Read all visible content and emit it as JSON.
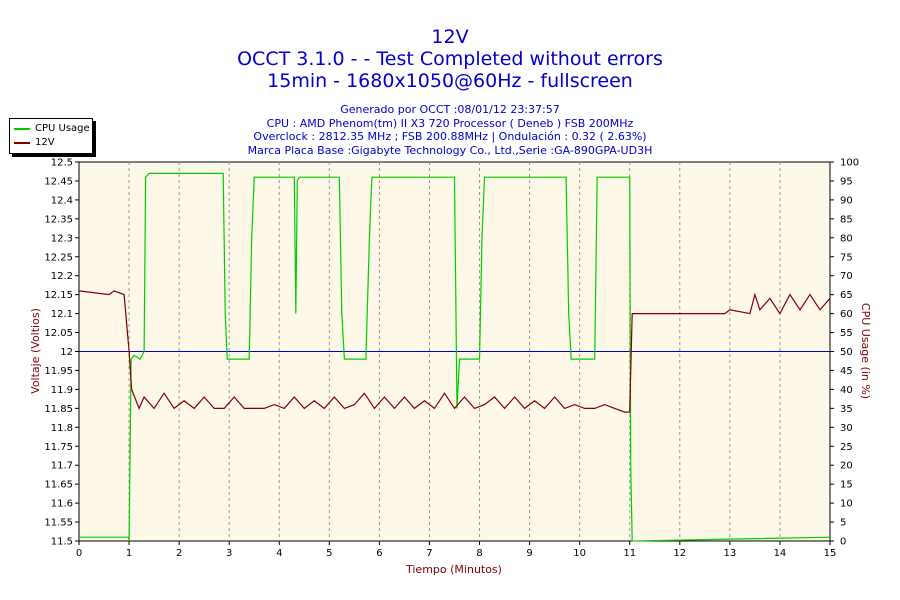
{
  "header": {
    "title": "12V",
    "subtitle1": "OCCT 3.1.0 -  - Test Completed without errors",
    "subtitle2": "15min - 1680x1050@60Hz - fullscreen"
  },
  "info": {
    "line1": "Generado por OCCT :08/01/12 23:37:57",
    "line2": "CPU : AMD Phenom(tm) II X3 720 Processor ( Deneb ) FSB 200MHz",
    "line3": "Overclock : 2812.35 MHz ; FSB 200.88MHz | Ondulación : 0.32 ( 2.63%)",
    "line4": "Marca Placa Base :Gigabyte Technology Co., Ltd.,Serie :GA-890GPA-UD3H"
  },
  "legend": {
    "cpu_label": "CPU Usage",
    "v12_label": "12V"
  },
  "colors": {
    "cpu": "#00cc00",
    "v12": "#800000",
    "reference": "#0000cc",
    "plot_bg": "#fdf8e7",
    "title": "#0000cc"
  },
  "chart_data": {
    "type": "line",
    "title": "12V",
    "xlabel": "Tiempo (Minutos)",
    "ylabel_left": "Voltaje (Voltios)",
    "ylabel_right": "CPU Usage (in %)",
    "xlim": [
      0,
      15
    ],
    "ylim_left": [
      11.5,
      12.5
    ],
    "ylim_right": [
      0,
      100
    ],
    "x_ticks": [
      "0",
      "1",
      "2",
      "3",
      "4",
      "5",
      "6",
      "7",
      "8",
      "9",
      "10",
      "11",
      "12",
      "13",
      "14",
      "15"
    ],
    "y_left_ticks": [
      "11.5",
      "11.55",
      "11.6",
      "11.65",
      "11.7",
      "11.75",
      "11.8",
      "11.85",
      "11.9",
      "11.95",
      "12",
      "12.05",
      "12.1",
      "12.15",
      "12.2",
      "12.25",
      "12.3",
      "12.35",
      "12.4",
      "12.45",
      "12.5"
    ],
    "y_right_ticks": [
      "0",
      "5",
      "10",
      "15",
      "20",
      "25",
      "30",
      "35",
      "40",
      "45",
      "50",
      "55",
      "60",
      "65",
      "70",
      "75",
      "80",
      "85",
      "90",
      "95",
      "100"
    ],
    "grid": true,
    "reference_line": 12.0,
    "series": [
      {
        "name": "CPU Usage",
        "axis": "right",
        "x": [
          0,
          0.99,
          1.0,
          1.04,
          1.1,
          1.22,
          1.3,
          1.33,
          1.4,
          2.88,
          2.92,
          2.96,
          3.4,
          3.45,
          3.5,
          4.3,
          4.33,
          4.36,
          4.4,
          5.2,
          5.25,
          5.3,
          5.73,
          5.8,
          5.85,
          7.5,
          7.55,
          7.6,
          8.0,
          8.05,
          8.1,
          9.73,
          9.78,
          9.83,
          10.3,
          10.35,
          10.4,
          11.0,
          11.02,
          11.05,
          15
        ],
        "y": [
          1,
          1,
          0,
          48,
          49,
          48,
          50,
          96,
          97,
          97,
          60,
          48,
          48,
          80,
          96,
          96,
          60,
          95,
          96,
          96,
          60,
          48,
          48,
          80,
          96,
          96,
          35,
          48,
          48,
          80,
          96,
          96,
          60,
          48,
          48,
          96,
          96,
          96,
          20,
          0,
          1
        ]
      },
      {
        "name": "12V",
        "axis": "left",
        "x": [
          0,
          0.6,
          0.7,
          0.9,
          1.0,
          1.05,
          1.2,
          1.3,
          1.5,
          1.7,
          1.9,
          2.1,
          2.3,
          2.5,
          2.7,
          2.9,
          3.1,
          3.3,
          3.5,
          3.7,
          3.9,
          4.1,
          4.3,
          4.5,
          4.7,
          4.9,
          5.1,
          5.3,
          5.5,
          5.7,
          5.9,
          6.1,
          6.3,
          6.5,
          6.7,
          6.9,
          7.1,
          7.3,
          7.5,
          7.7,
          7.9,
          8.1,
          8.3,
          8.5,
          8.7,
          8.9,
          9.1,
          9.3,
          9.5,
          9.7,
          9.9,
          10.1,
          10.3,
          10.5,
          10.7,
          10.9,
          11.0,
          11.05,
          11.5,
          11.6,
          12.0,
          12.5,
          12.9,
          13.0,
          13.4,
          13.5,
          13.6,
          13.8,
          14.0,
          14.2,
          14.4,
          14.6,
          14.8,
          15
        ],
        "y": [
          12.16,
          12.15,
          12.16,
          12.15,
          12.0,
          11.9,
          11.85,
          11.88,
          11.85,
          11.89,
          11.85,
          11.87,
          11.85,
          11.88,
          11.85,
          11.85,
          11.88,
          11.85,
          11.85,
          11.85,
          11.86,
          11.85,
          11.88,
          11.85,
          11.87,
          11.85,
          11.88,
          11.85,
          11.86,
          11.89,
          11.85,
          11.88,
          11.85,
          11.88,
          11.85,
          11.87,
          11.85,
          11.89,
          11.85,
          11.88,
          11.85,
          11.86,
          11.88,
          11.85,
          11.88,
          11.85,
          11.87,
          11.85,
          11.88,
          11.85,
          11.86,
          11.85,
          11.85,
          11.86,
          11.85,
          11.84,
          11.84,
          12.1,
          12.1,
          12.1,
          12.1,
          12.1,
          12.1,
          12.11,
          12.1,
          12.15,
          12.11,
          12.14,
          12.1,
          12.15,
          12.11,
          12.15,
          12.11,
          12.14
        ]
      }
    ]
  }
}
